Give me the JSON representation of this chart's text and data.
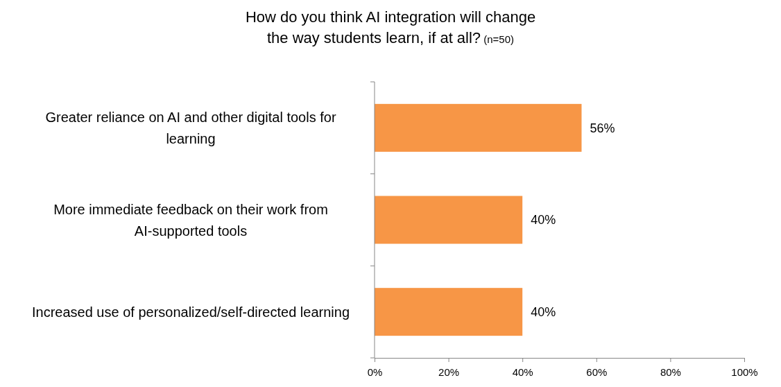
{
  "chart_data": {
    "type": "bar",
    "orientation": "horizontal",
    "title": "How do you think AI integration will change the way students learn, if at all?",
    "subtitle": "(n=50)",
    "categories": [
      "Greater reliance on AI and other digital tools for learning",
      "More immediate feedback on their work from AI-supported tools",
      "Increased use of personalized/self-directed learning"
    ],
    "values": [
      56,
      40,
      40
    ],
    "color": "#f79646",
    "value_labels": [
      "56%",
      "40%",
      "40%"
    ],
    "xlim": [
      0,
      100
    ],
    "xticks": [
      {
        "value": 0,
        "label": "0%"
      },
      {
        "value": 20,
        "label": "20%"
      },
      {
        "value": 40,
        "label": "40%"
      },
      {
        "value": 60,
        "label": "60%"
      },
      {
        "value": 80,
        "label": "80%"
      },
      {
        "value": 100,
        "label": "100%"
      }
    ],
    "grid": false
  }
}
